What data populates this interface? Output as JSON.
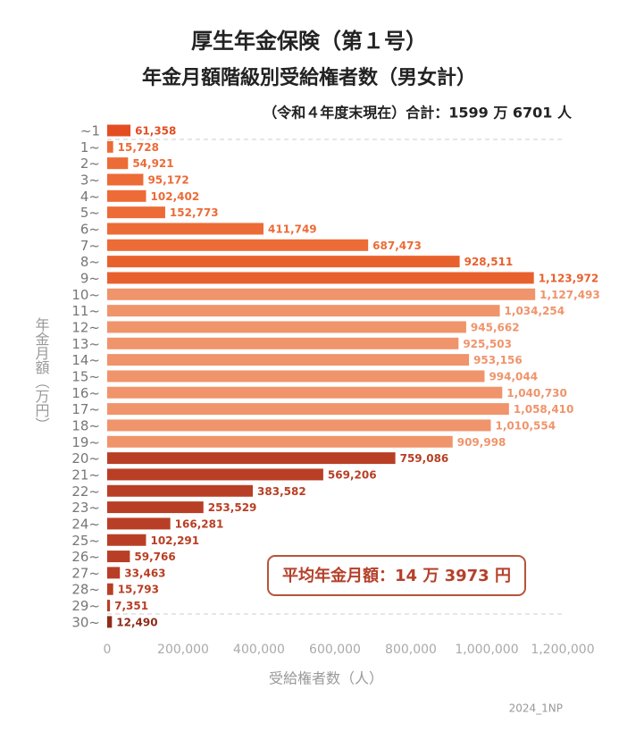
{
  "chart_data": {
    "type": "barh",
    "title": "厚生年金保険（第１号）",
    "subtitle": "年金月額階級別受給権者数（男女計）",
    "note": "（令和４年度末現在）合計：1599 万 6701 人",
    "y_label": "年金月額（万円）",
    "x_label": "受給権者数（人）",
    "annotation": "平均年金月額：14 万 3973 円",
    "footer": "2024_1NP",
    "categories": [
      "~1",
      "1~",
      "2~",
      "3~",
      "4~",
      "5~",
      "6~",
      "7~",
      "8~",
      "9~",
      "10~",
      "11~",
      "12~",
      "13~",
      "14~",
      "15~",
      "16~",
      "17~",
      "18~",
      "19~",
      "20~",
      "21~",
      "22~",
      "23~",
      "24~",
      "25~",
      "26~",
      "27~",
      "28~",
      "29~",
      "30~"
    ],
    "values": [
      61358,
      15728,
      54921,
      95172,
      102402,
      152773,
      411749,
      687473,
      928511,
      1123972,
      1127493,
      1034254,
      945662,
      925503,
      953156,
      994044,
      1040730,
      1058410,
      1010554,
      909998,
      759086,
      569206,
      383582,
      253529,
      166281,
      102291,
      59766,
      33463,
      15793,
      7351,
      12490
    ],
    "value_labels": [
      "61,358",
      "15,728",
      "54,921",
      "95,172",
      "102,402",
      "152,773",
      "411,749",
      "687,473",
      "928,511",
      "1,123,972",
      "1,127,493",
      "1,034,254",
      "945,662",
      "925,503",
      "953,156",
      "994,044",
      "1,040,730",
      "1,058,410",
      "1,010,554",
      "909,998",
      "759,086",
      "569,206",
      "383,582",
      "253,529",
      "166,281",
      "102,291",
      "59,766",
      "33,463",
      "15,793",
      "7,351",
      "12,490"
    ],
    "colors": [
      "#e24e22",
      "#ec6b37",
      "#ec6b37",
      "#ec6b37",
      "#ec6b37",
      "#ec6b37",
      "#ec6b37",
      "#ec6b37",
      "#e8612d",
      "#e8612d",
      "#f0946b",
      "#f0946b",
      "#f0946b",
      "#f0946b",
      "#f0946b",
      "#f0946b",
      "#f0946b",
      "#f0946b",
      "#f0946b",
      "#f0946b",
      "#b83f25",
      "#b83f25",
      "#b83f25",
      "#b83f25",
      "#b83f25",
      "#b83f25",
      "#b83f25",
      "#b83f25",
      "#b83f25",
      "#b83f25",
      "#8e2c1a"
    ],
    "xlim": [
      0,
      1200000
    ],
    "xticks": [
      0,
      {
        "value": 200000,
        "label": "200,000"
      },
      {
        "value": 400000,
        "label": "400,000"
      },
      {
        "value": 600000,
        "label": "600,000"
      },
      {
        "value": 800000,
        "label": "800,000"
      },
      {
        "value": 1000000,
        "label": "1,000,000"
      },
      {
        "value": 1200000,
        "label": "1,200,000"
      }
    ]
  }
}
